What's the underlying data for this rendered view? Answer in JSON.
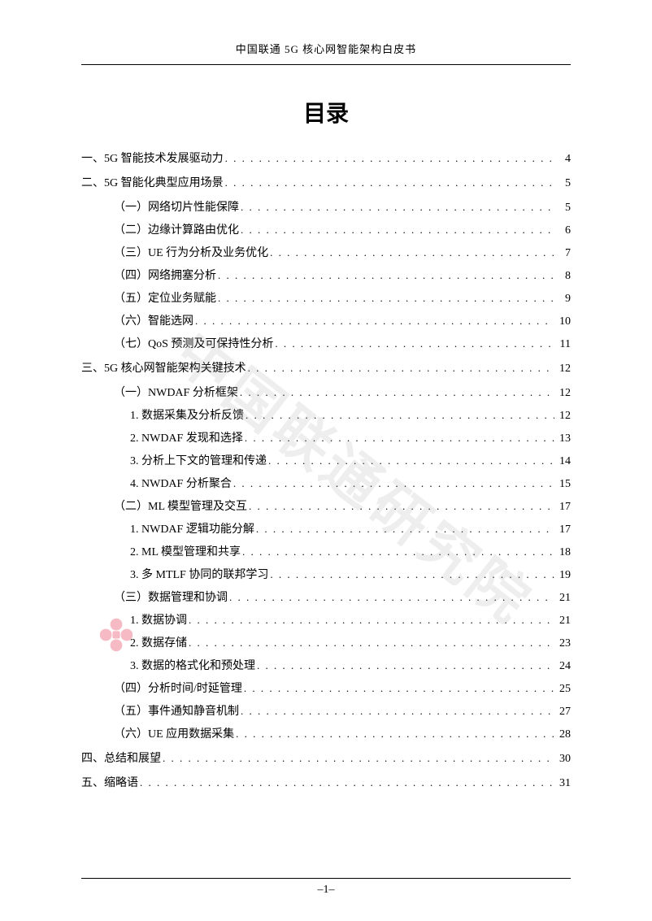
{
  "header": "中国联通 5G 核心网智能架构白皮书",
  "title": "目录",
  "page_number": "–1–",
  "watermark_large": "中国联通研究院",
  "toc": [
    {
      "level": 0,
      "label": "一、5G 智能技术发展驱动力",
      "page": "4"
    },
    {
      "level": 0,
      "label": "二、5G 智能化典型应用场景",
      "page": "5"
    },
    {
      "level": 1,
      "label": "（一）网络切片性能保障",
      "page": "5"
    },
    {
      "level": 1,
      "label": "（二）边缘计算路由优化",
      "page": "6"
    },
    {
      "level": 1,
      "label": "（三）UE 行为分析及业务优化",
      "page": "7"
    },
    {
      "level": 1,
      "label": "（四）网络拥塞分析",
      "page": "8"
    },
    {
      "level": 1,
      "label": "（五）定位业务赋能",
      "page": "9"
    },
    {
      "level": 1,
      "label": "（六）智能选网",
      "page": "10"
    },
    {
      "level": 1,
      "label": "（七）QoS 预测及可保持性分析",
      "page": "11"
    },
    {
      "level": 0,
      "label": "三、5G 核心网智能架构关键技术",
      "page": "12"
    },
    {
      "level": 1,
      "label": "（一）NWDAF 分析框架",
      "page": "12"
    },
    {
      "level": 2,
      "label": "1.  数据采集及分析反馈",
      "page": "12"
    },
    {
      "level": 2,
      "label": "2.  NWDAF 发现和选择",
      "page": "13"
    },
    {
      "level": 2,
      "label": "3.  分析上下文的管理和传递",
      "page": "14"
    },
    {
      "level": 2,
      "label": "4.  NWDAF 分析聚合",
      "page": "15"
    },
    {
      "level": 1,
      "label": "（二）ML 模型管理及交互",
      "page": "17"
    },
    {
      "level": 2,
      "label": "1.  NWDAF 逻辑功能分解",
      "page": "17"
    },
    {
      "level": 2,
      "label": "2.  ML 模型管理和共享",
      "page": "18"
    },
    {
      "level": 2,
      "label": "3.  多 MTLF 协同的联邦学习",
      "page": "19"
    },
    {
      "level": 1,
      "label": "（三）数据管理和协调",
      "page": "21"
    },
    {
      "level": 2,
      "label": "1.  数据协调",
      "page": "21"
    },
    {
      "level": 2,
      "label": "2.  数据存储",
      "page": "23"
    },
    {
      "level": 2,
      "label": "3.  数据的格式化和预处理",
      "page": "24"
    },
    {
      "level": 1,
      "label": "（四）分析时间/时延管理",
      "page": "25"
    },
    {
      "level": 1,
      "label": "（五）事件通知静音机制",
      "page": "27"
    },
    {
      "level": 1,
      "label": "（六）UE 应用数据采集",
      "page": "28"
    },
    {
      "level": 0,
      "label": "四、总结和展望",
      "page": "30"
    },
    {
      "level": 0,
      "label": "五、缩略语",
      "page": "31"
    }
  ]
}
